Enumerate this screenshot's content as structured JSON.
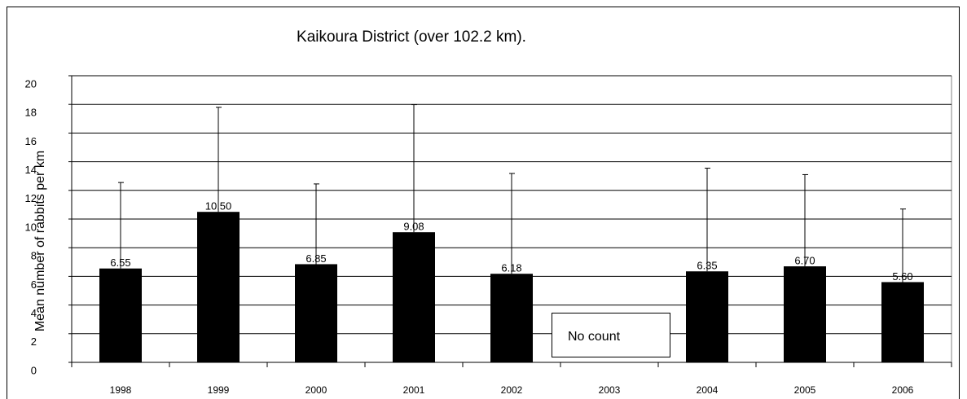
{
  "chart_data": {
    "type": "bar",
    "title": "Kaikoura District (over 102.2 km).",
    "y_label": "Mean number of rabbits per km",
    "categories": [
      "1998",
      "1999",
      "2000",
      "2001",
      "2002",
      "2003",
      "2004",
      "2005",
      "2006"
    ],
    "values": [
      6.55,
      10.5,
      6.85,
      9.08,
      6.18,
      null,
      6.35,
      6.7,
      5.6
    ],
    "value_labels": [
      "6.55",
      "10.50",
      "6.85",
      "9.08",
      "6.18",
      null,
      "6.35",
      "6.70",
      "5.60"
    ],
    "errors": [
      6.0,
      7.3,
      5.6,
      8.9,
      7.0,
      null,
      7.2,
      6.4,
      5.1
    ],
    "color": "#000000",
    "annotation": "No count",
    "ylim": [
      0,
      20
    ],
    "yticks": [
      0,
      2,
      4,
      6,
      8,
      10,
      12,
      14,
      16,
      18,
      20
    ],
    "grid": true
  }
}
